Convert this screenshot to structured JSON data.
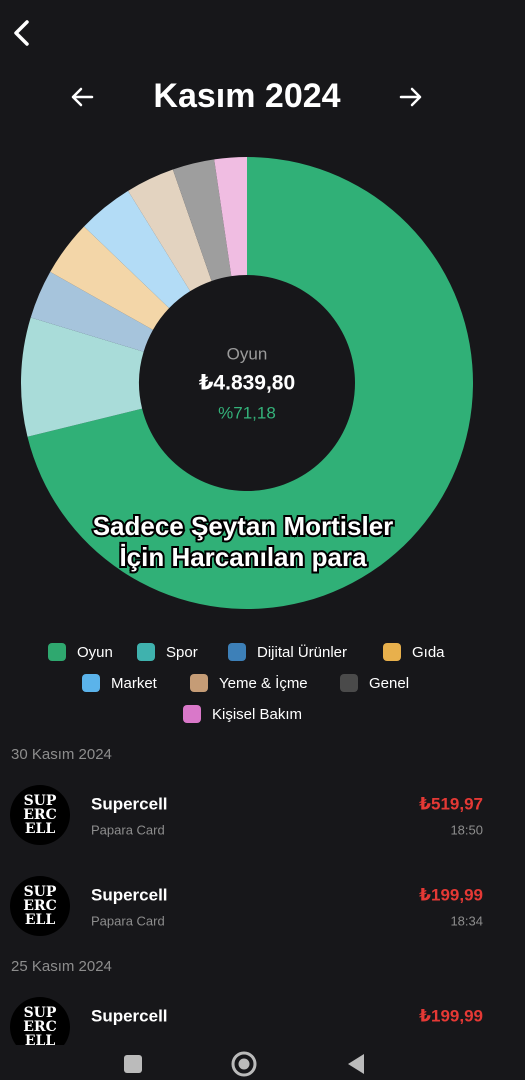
{
  "header": {
    "title": "Kasım 2024"
  },
  "chart_data": {
    "type": "pie",
    "categories": [
      "Oyun",
      "Spor",
      "Dijital Ürünler",
      "Gıda",
      "Market",
      "Yeme & İçme",
      "Genel",
      "Kişisel Bakım"
    ],
    "values": [
      71.18,
      8.5,
      3.5,
      4,
      4,
      3.5,
      3,
      2.32
    ],
    "colors": [
      "#30b077",
      "#a9dcd9",
      "#a6c4dc",
      "#f3d6a8",
      "#b3dcf6",
      "#e3d3c0",
      "#9e9e9e",
      "#f0bde2"
    ],
    "legend_colors": [
      "#2fa86f",
      "#3fb2ae",
      "#3d80b8",
      "#e8b04c",
      "#5bb3ea",
      "#c59c76",
      "#4a4a4a",
      "#d978c9"
    ],
    "center": {
      "label": "Oyun",
      "amount": "₺4.839,80",
      "percent": "%71,18"
    }
  },
  "caption": [
    "Sadece Şeytan Mortisler",
    "İçin Harcanılan para"
  ],
  "transactions": [
    {
      "date": "30 Kasım 2024",
      "items": [
        {
          "logo": [
            "SUP",
            "ERC",
            "ELL"
          ],
          "name": "Supercell",
          "card": "Papara Card",
          "amount": "₺519,97",
          "time": "18:50"
        },
        {
          "logo": [
            "SUP",
            "ERC",
            "ELL"
          ],
          "name": "Supercell",
          "card": "Papara Card",
          "amount": "₺199,99",
          "time": "18:34"
        }
      ]
    },
    {
      "date": "25 Kasım 2024",
      "items": [
        {
          "logo": [
            "SUP",
            "ERC",
            "ELL"
          ],
          "name": "Supercell",
          "amount": "₺199,99"
        }
      ]
    }
  ]
}
